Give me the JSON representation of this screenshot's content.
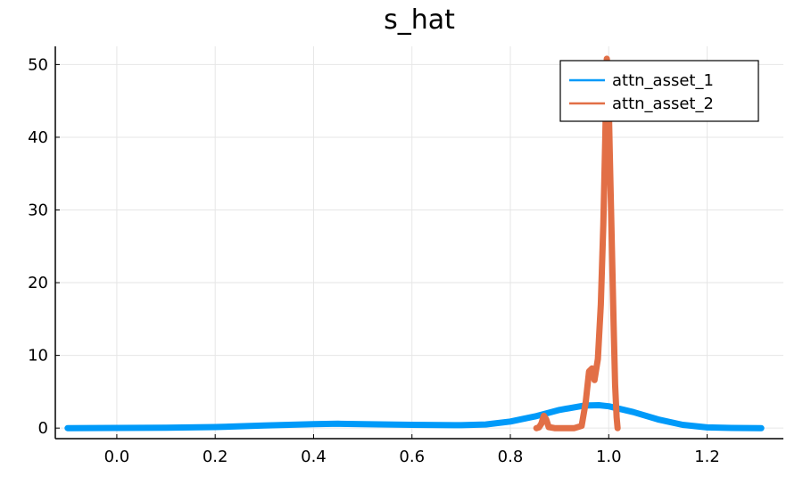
{
  "chart_data": {
    "type": "line",
    "title": "s_hat",
    "xlabel": "",
    "ylabel": "",
    "xlim": [
      -0.125,
      1.355
    ],
    "ylim": [
      -1.45,
      52.5
    ],
    "x_ticks": [
      0.0,
      0.2,
      0.4,
      0.6,
      0.8,
      1.0,
      1.2
    ],
    "x_tick_labels": [
      "0.0",
      "0.2",
      "0.4",
      "0.6",
      "0.8",
      "1.0",
      "1.2"
    ],
    "y_ticks": [
      0,
      10,
      20,
      30,
      40,
      50
    ],
    "y_tick_labels": [
      "0",
      "10",
      "20",
      "30",
      "40",
      "50"
    ],
    "grid": true,
    "legend_position": "top-right",
    "series": [
      {
        "name": "attn_asset_1",
        "color": "#009af9",
        "points": [
          [
            -0.1,
            0.0
          ],
          [
            0.0,
            0.02
          ],
          [
            0.1,
            0.05
          ],
          [
            0.2,
            0.15
          ],
          [
            0.3,
            0.35
          ],
          [
            0.4,
            0.55
          ],
          [
            0.45,
            0.6
          ],
          [
            0.5,
            0.55
          ],
          [
            0.6,
            0.45
          ],
          [
            0.7,
            0.4
          ],
          [
            0.75,
            0.5
          ],
          [
            0.8,
            0.9
          ],
          [
            0.85,
            1.6
          ],
          [
            0.9,
            2.5
          ],
          [
            0.95,
            3.1
          ],
          [
            0.98,
            3.15
          ],
          [
            1.0,
            3.0
          ],
          [
            1.05,
            2.2
          ],
          [
            1.1,
            1.2
          ],
          [
            1.15,
            0.45
          ],
          [
            1.2,
            0.1
          ],
          [
            1.25,
            0.02
          ],
          [
            1.31,
            0.0
          ]
        ]
      },
      {
        "name": "attn_asset_2",
        "color": "#e26f46",
        "points": [
          [
            0.853,
            0.0
          ],
          [
            0.858,
            0.1
          ],
          [
            0.863,
            0.6
          ],
          [
            0.868,
            1.7
          ],
          [
            0.873,
            1.2
          ],
          [
            0.878,
            0.15
          ],
          [
            0.89,
            0.0
          ],
          [
            0.93,
            0.0
          ],
          [
            0.945,
            0.3
          ],
          [
            0.953,
            3.5
          ],
          [
            0.96,
            7.8
          ],
          [
            0.966,
            8.2
          ],
          [
            0.971,
            6.6
          ],
          [
            0.978,
            9.5
          ],
          [
            0.984,
            17.0
          ],
          [
            0.989,
            28.0
          ],
          [
            0.993,
            40.0
          ],
          [
            0.996,
            50.8
          ],
          [
            0.999,
            48.0
          ],
          [
            1.002,
            38.0
          ],
          [
            1.006,
            26.0
          ],
          [
            1.01,
            14.0
          ],
          [
            1.013,
            6.0
          ],
          [
            1.016,
            1.5
          ],
          [
            1.018,
            0.0
          ]
        ]
      }
    ]
  }
}
